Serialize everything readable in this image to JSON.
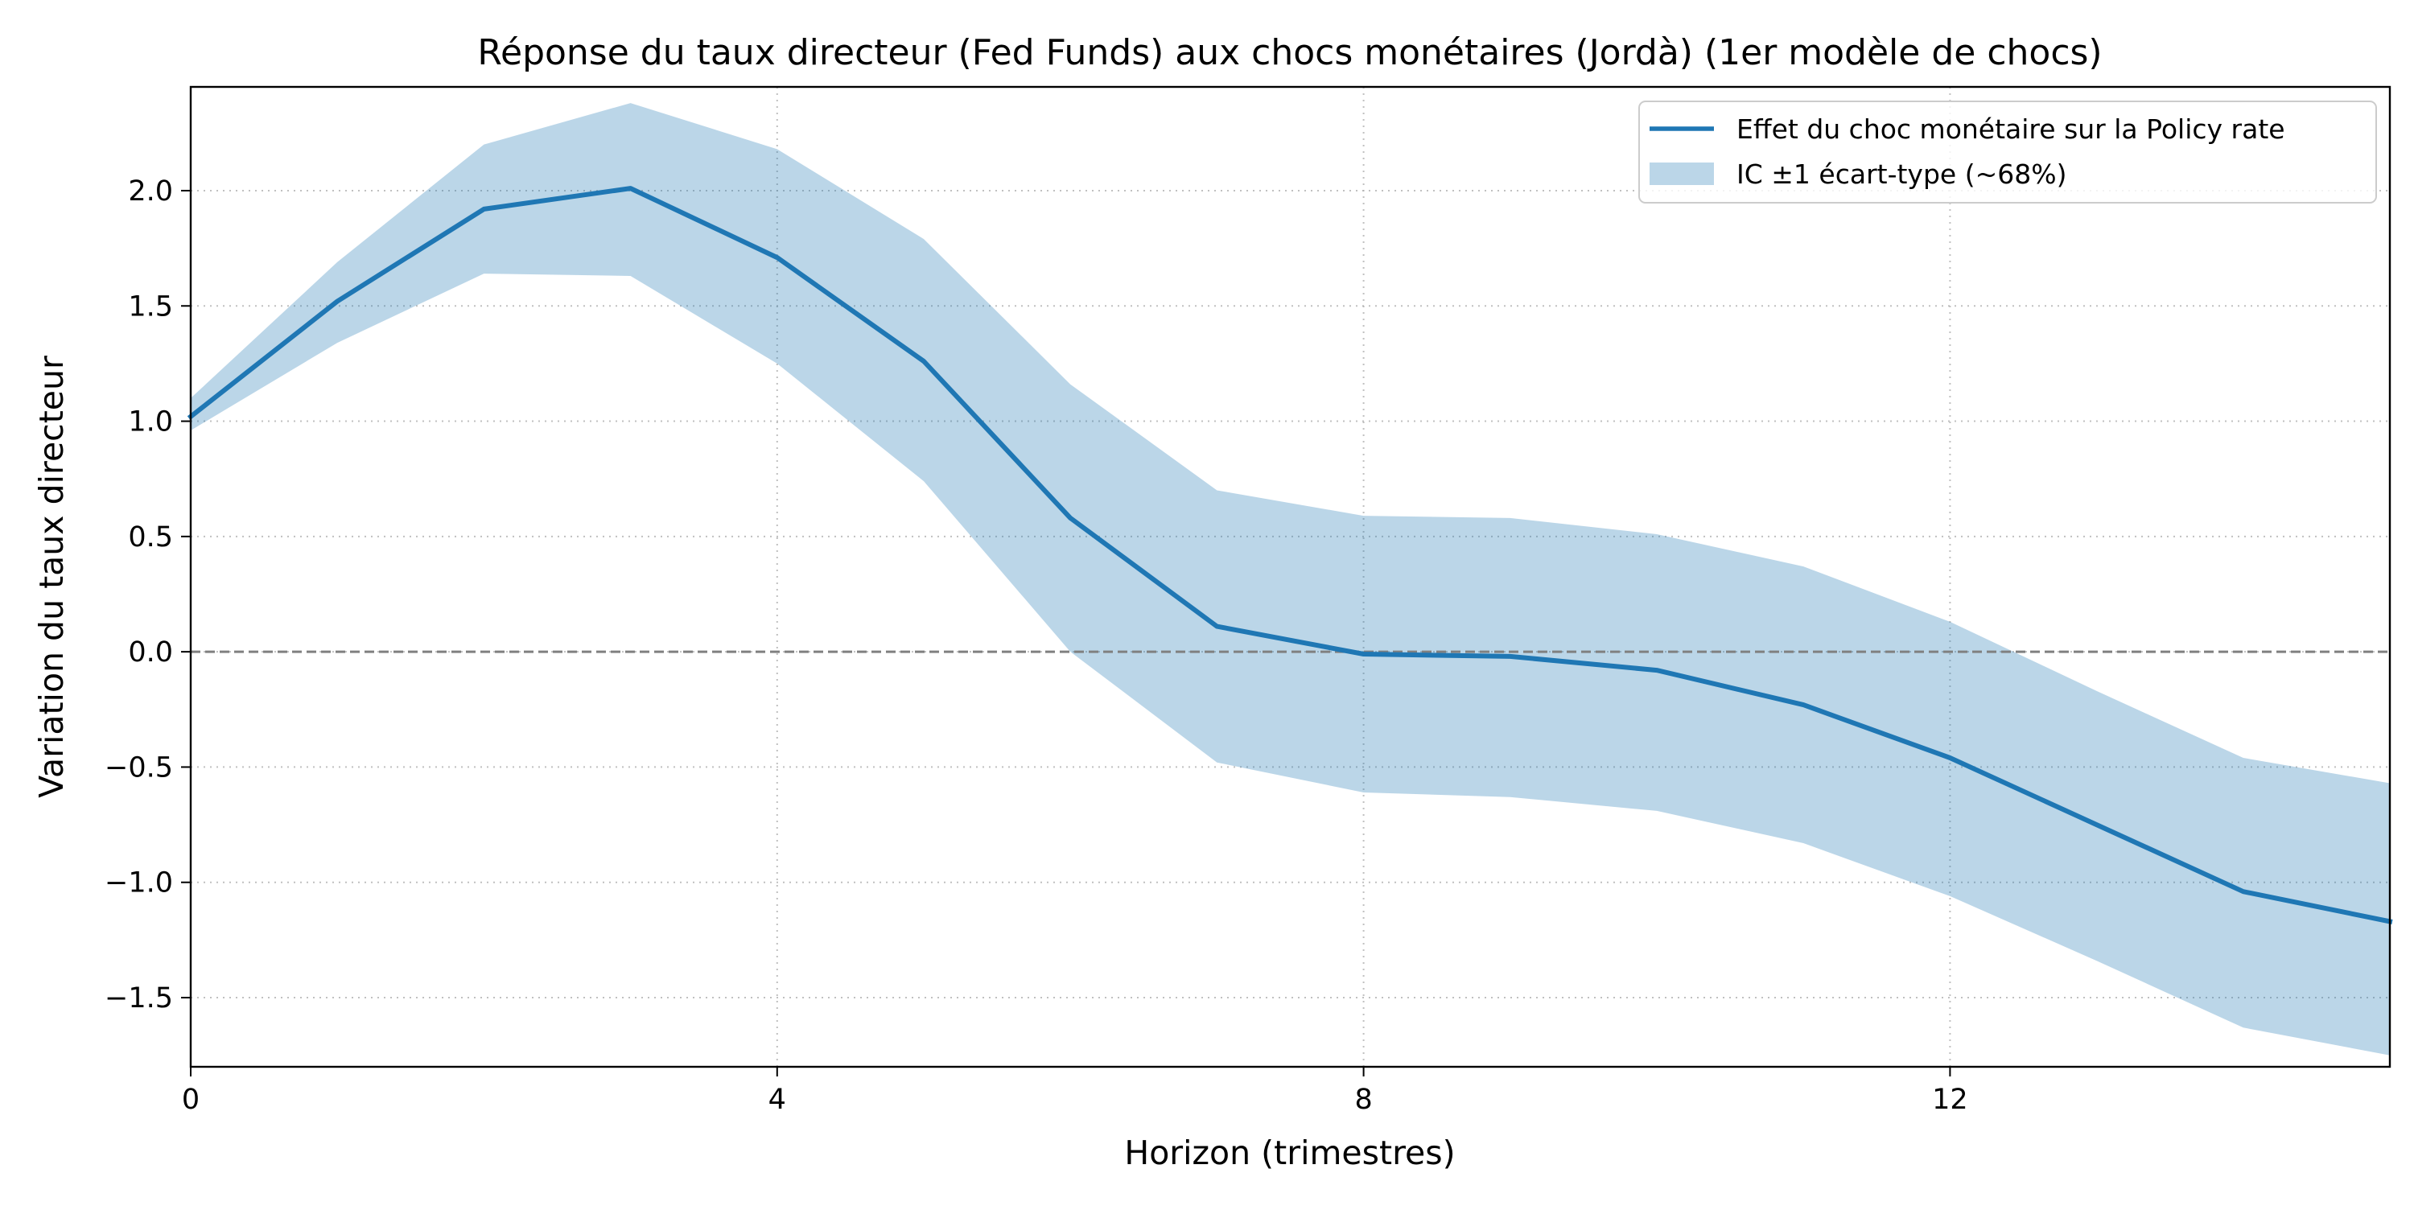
{
  "chart_data": {
    "type": "line",
    "title": "Réponse du taux directeur (Fed Funds) aux chocs monétaires (Jordà) (1er modèle de chocs)",
    "xlabel": "Horizon (trimestres)",
    "ylabel": "Variation du taux directeur",
    "xlim": [
      0,
      15
    ],
    "ylim": [
      -1.8,
      2.45
    ],
    "x_ticks": [
      0,
      4,
      8,
      12
    ],
    "x_tick_labels": [
      "0",
      "4",
      "8",
      "12"
    ],
    "y_ticks": [
      2.0,
      1.5,
      1.0,
      0.5,
      0.0,
      -0.5,
      -1.0,
      -1.5
    ],
    "y_tick_labels": [
      "2.0",
      "1.5",
      "1.0",
      "0.5",
      "0.0",
      "−0.5",
      "−1.0",
      "−1.5"
    ],
    "grid": true,
    "zero_line": 0.0,
    "legend_position": "top-right",
    "x": [
      0,
      1,
      2,
      3,
      4,
      5,
      6,
      7,
      8,
      9,
      10,
      11,
      12,
      13,
      14,
      15
    ],
    "series": [
      {
        "name": "Effet du choc monétaire sur la Policy rate",
        "type": "line",
        "color": "#1f77b4",
        "values": [
          1.02,
          1.52,
          1.92,
          2.01,
          1.71,
          1.26,
          0.58,
          0.11,
          -0.01,
          -0.02,
          -0.08,
          -0.23,
          -0.46,
          -0.75,
          -1.04,
          -1.17
        ]
      },
      {
        "name": "IC ±1 écart-type (~68%)",
        "type": "band",
        "color": "#1f77b4",
        "opacity": 0.3,
        "upper": [
          1.1,
          1.69,
          2.2,
          2.38,
          2.18,
          1.79,
          1.16,
          0.7,
          0.59,
          0.58,
          0.51,
          0.37,
          0.13,
          -0.17,
          -0.46,
          -0.57
        ],
        "lower": [
          0.96,
          1.34,
          1.64,
          1.63,
          1.25,
          0.74,
          0.0,
          -0.48,
          -0.61,
          -0.63,
          -0.69,
          -0.83,
          -1.06,
          -1.34,
          -1.63,
          -1.75
        ]
      }
    ]
  }
}
